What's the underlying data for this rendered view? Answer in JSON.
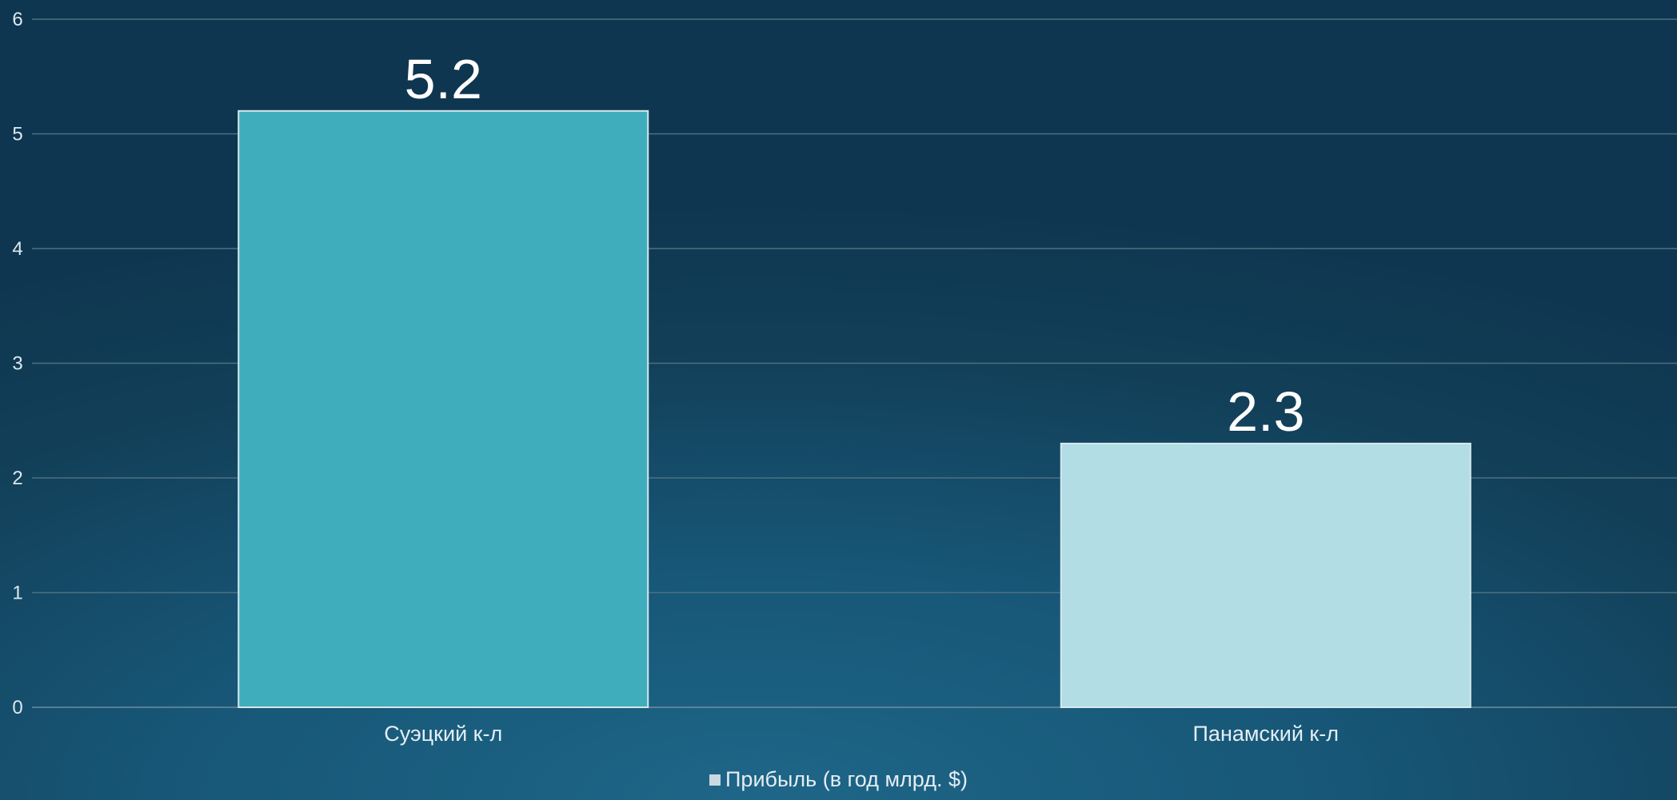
{
  "chart_data": {
    "type": "bar",
    "categories": [
      "Суэцкий к-л",
      "Панамский к-л"
    ],
    "series": [
      {
        "name": "Прибыль (в год млрд. $)",
        "values": [
          5.2,
          2.3
        ],
        "data_labels": [
          "5.2",
          "2.3"
        ]
      }
    ],
    "bar_colors": [
      "#40adbc",
      "#b2dde5"
    ],
    "legend_color": "#c9d9e1",
    "ylim": [
      0,
      6
    ],
    "yticks": [
      0,
      1,
      2,
      3,
      4,
      5,
      6
    ],
    "grid": true,
    "legend_position": "bottom",
    "title": "",
    "xlabel": "",
    "ylabel": ""
  }
}
